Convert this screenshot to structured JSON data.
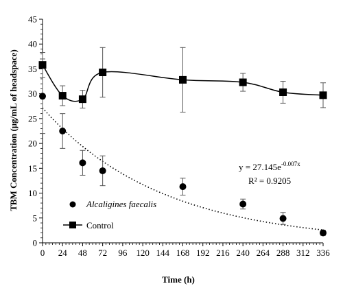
{
  "chart_data": {
    "type": "scatter",
    "xlabel": "Time (h)",
    "ylabel": "TBM Concentration (μg/mL of headspace)",
    "xlim": [
      0,
      336
    ],
    "ylim": [
      0,
      45
    ],
    "x_ticks": [
      "0",
      "24",
      "48",
      "72",
      "96",
      "120",
      "144",
      "168",
      "192",
      "216",
      "240",
      "264",
      "288",
      "312",
      "336"
    ],
    "y_ticks": [
      "0",
      "5",
      "10",
      "15",
      "20",
      "25",
      "30",
      "35",
      "40",
      "45"
    ],
    "grid": false,
    "legend_position": "bottom-left",
    "series": [
      {
        "name": "Alcaligines faecalis",
        "marker": "circle",
        "line": "none",
        "x": [
          0,
          24,
          48,
          72,
          168,
          240,
          288,
          336
        ],
        "y": [
          29.5,
          22.5,
          16.1,
          14.5,
          11.3,
          7.8,
          4.9,
          2.0
        ],
        "err": [
          7.5,
          3.5,
          2.5,
          3.0,
          1.7,
          1.0,
          1.2,
          0.5
        ]
      },
      {
        "name": "Control",
        "marker": "square",
        "line": "smooth",
        "x": [
          0,
          24,
          48,
          72,
          168,
          240,
          288,
          336
        ],
        "y": [
          35.8,
          29.6,
          28.9,
          34.3,
          32.8,
          32.3,
          30.3,
          29.7
        ],
        "err": [
          2.5,
          2.0,
          1.8,
          5.0,
          6.5,
          1.8,
          2.2,
          2.5
        ]
      }
    ],
    "trendline": {
      "type": "exponential",
      "a": 27.145,
      "b": -0.007,
      "style": "dotted",
      "equation_base": "y = 27.145e",
      "equation_exponent": "-0.007x",
      "r_squared_label": "R² = 0.9205"
    }
  }
}
